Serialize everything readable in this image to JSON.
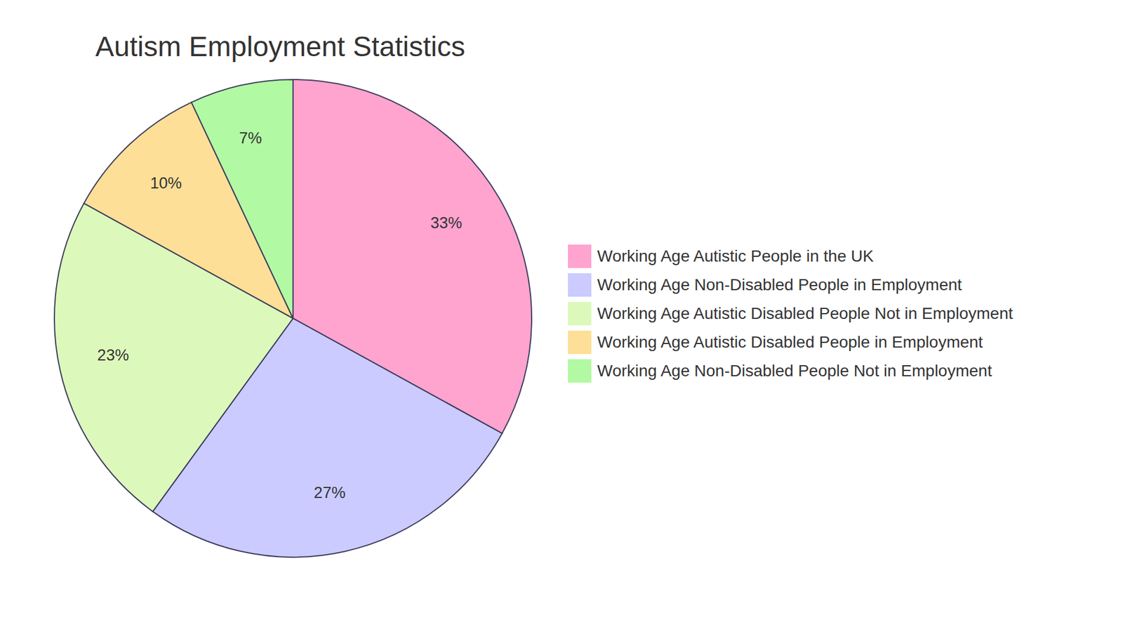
{
  "chart_data": {
    "type": "pie",
    "title": "Autism Employment Statistics",
    "categories": [
      "Working Age Autistic People in the UK",
      "Working Age Non-Disabled People in Employment",
      "Working Age Autistic Disabled People Not in Employment",
      "Working Age Autistic Disabled People in Employment",
      "Working Age Non-Disabled People Not in Employment"
    ],
    "values": [
      33,
      27,
      23,
      10,
      7
    ],
    "value_labels": [
      "33%",
      "27%",
      "23%",
      "10%",
      "7%"
    ],
    "colors": [
      "#ffa3cf",
      "#cbcbff",
      "#dcf9bb",
      "#fedf97",
      "#b2f9a3"
    ],
    "data_labels": true,
    "legend": "right"
  }
}
